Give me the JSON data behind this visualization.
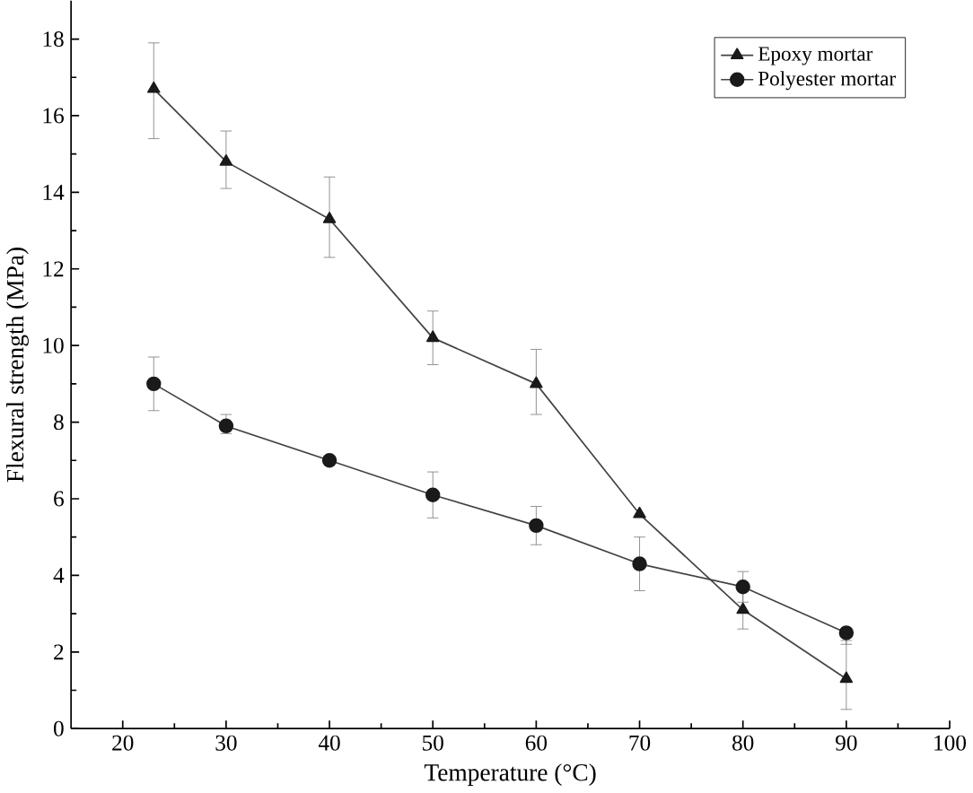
{
  "chart_data": {
    "type": "line",
    "xlabel": "Temperature (°C)",
    "ylabel": "Flexural strength (MPa)",
    "x": [
      23,
      30,
      40,
      50,
      60,
      70,
      80,
      90
    ],
    "series": [
      {
        "name": "Epoxy mortar",
        "color": "#1a1a1a",
        "marker": "triangle",
        "values": [
          16.7,
          14.8,
          13.3,
          10.2,
          9.0,
          5.6,
          3.1,
          1.3
        ],
        "errors": [
          [
            15.4,
            17.9
          ],
          [
            14.1,
            15.6
          ],
          [
            12.3,
            14.4
          ],
          [
            9.5,
            10.9
          ],
          [
            8.2,
            9.9
          ],
          null,
          [
            2.6,
            3.6
          ],
          [
            0.5,
            2.3
          ]
        ]
      },
      {
        "name": "Polyester mortar",
        "color": "#1a1a1a",
        "marker": "circle",
        "values": [
          9.0,
          7.9,
          7.0,
          6.1,
          5.3,
          4.3,
          3.7,
          2.5
        ],
        "errors": [
          [
            8.3,
            9.7
          ],
          [
            7.7,
            8.2
          ],
          null,
          [
            5.5,
            6.7
          ],
          [
            4.8,
            5.8
          ],
          [
            3.6,
            5.0
          ],
          [
            3.3,
            4.1
          ],
          [
            2.2,
            2.6
          ]
        ]
      }
    ],
    "xlim": [
      15,
      100
    ],
    "xticks": [
      20,
      30,
      40,
      50,
      60,
      70,
      80,
      90,
      100
    ],
    "ylim": [
      0,
      19
    ],
    "yticks": [
      0,
      2,
      4,
      6,
      8,
      10,
      12,
      14,
      16,
      18
    ],
    "grid": false,
    "legend": "top right"
  }
}
